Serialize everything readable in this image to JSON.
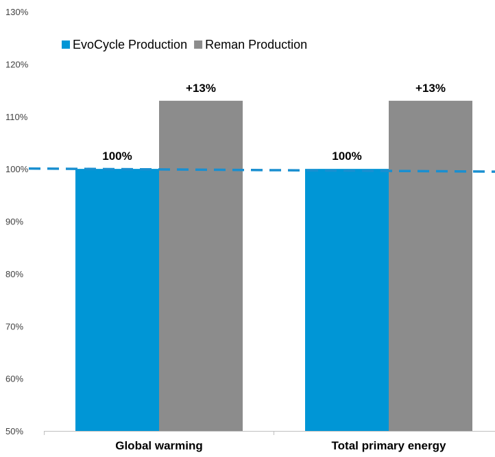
{
  "chart_data": {
    "type": "bar",
    "title": "",
    "xlabel": "",
    "ylabel": "",
    "categories": [
      "Global warming",
      "Total primary energy"
    ],
    "series": [
      {
        "name": "EvoCycle Production",
        "values": [
          100,
          100
        ],
        "labels": [
          "100%",
          "100%"
        ],
        "color": "#0096D6"
      },
      {
        "name": "Reman Production",
        "values": [
          113,
          113
        ],
        "labels": [
          "+13%",
          "+13%"
        ],
        "color": "#8C8C8C"
      }
    ],
    "ylim": [
      50,
      130
    ],
    "yticks": [
      50,
      60,
      70,
      80,
      90,
      100,
      110,
      120,
      130
    ],
    "ytick_labels": [
      "50%",
      "60%",
      "70%",
      "80%",
      "90%",
      "100%",
      "110%",
      "120%",
      "130%"
    ],
    "reference_line": {
      "value": 100,
      "style": "dashed",
      "color": "#1A8FD0"
    },
    "legend": {
      "placement": "top-left"
    },
    "grid": false
  }
}
